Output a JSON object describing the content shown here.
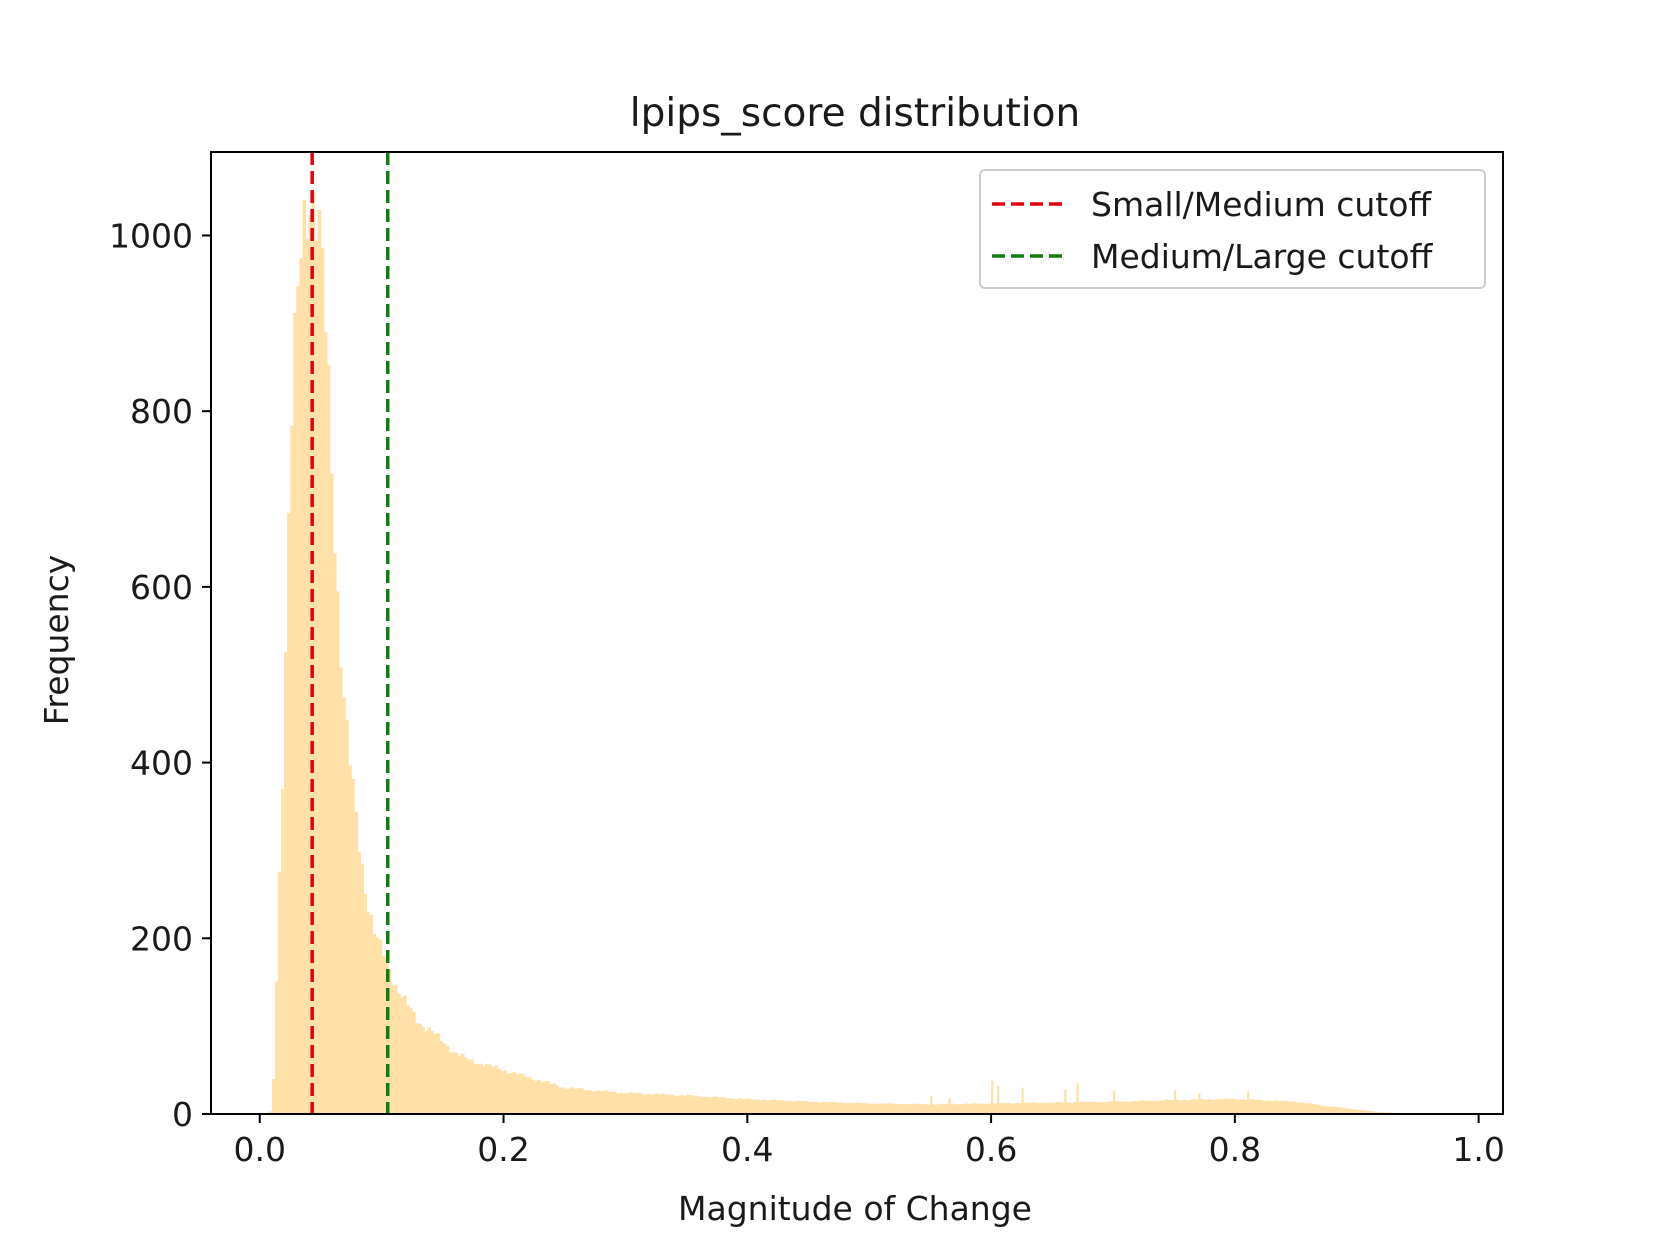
{
  "chart_data": {
    "type": "histogram",
    "title": "lpips_score distribution",
    "xlabel": "Magnitude of Change",
    "ylabel": "Frequency",
    "xlim": [
      -0.04,
      1.02
    ],
    "ylim": [
      0,
      1095
    ],
    "xticks": [
      0.0,
      0.2,
      0.4,
      0.6,
      0.8,
      1.0
    ],
    "xtick_labels": [
      "0.0",
      "0.2",
      "0.4",
      "0.6",
      "0.8",
      "1.0"
    ],
    "yticks": [
      0,
      200,
      400,
      600,
      800,
      1000
    ],
    "ytick_labels": [
      "0",
      "200",
      "400",
      "600",
      "800",
      "1000"
    ],
    "grid": false,
    "legend_position": "top-right",
    "bar_color": "#ffe0a8",
    "histogram_profile": {
      "x": [
        0.0,
        0.008,
        0.01,
        0.012,
        0.015,
        0.02,
        0.025,
        0.03,
        0.035,
        0.04,
        0.045,
        0.05,
        0.055,
        0.06,
        0.065,
        0.07,
        0.075,
        0.08,
        0.085,
        0.09,
        0.095,
        0.1,
        0.105,
        0.11,
        0.12,
        0.13,
        0.14,
        0.15,
        0.16,
        0.17,
        0.18,
        0.2,
        0.22,
        0.25,
        0.28,
        0.3,
        0.35,
        0.4,
        0.45,
        0.5,
        0.55,
        0.6,
        0.65,
        0.7,
        0.75,
        0.8,
        0.85,
        0.87,
        0.9,
        0.92,
        0.95
      ],
      "y": [
        0,
        0,
        8,
        60,
        220,
        450,
        750,
        900,
        1010,
        1060,
        1040,
        980,
        860,
        700,
        560,
        450,
        380,
        320,
        270,
        230,
        200,
        185,
        170,
        150,
        125,
        105,
        95,
        82,
        70,
        62,
        58,
        50,
        42,
        30,
        26,
        24,
        21,
        17,
        14,
        12,
        11,
        12,
        13,
        14,
        16,
        17,
        14,
        10,
        5,
        2,
        0
      ]
    },
    "spikes": [
      {
        "x": 0.55,
        "y": 20
      },
      {
        "x": 0.565,
        "y": 18
      },
      {
        "x": 0.6,
        "y": 38
      },
      {
        "x": 0.605,
        "y": 32
      },
      {
        "x": 0.625,
        "y": 30
      },
      {
        "x": 0.66,
        "y": 28
      },
      {
        "x": 0.67,
        "y": 35
      },
      {
        "x": 0.7,
        "y": 26
      },
      {
        "x": 0.75,
        "y": 27
      },
      {
        "x": 0.77,
        "y": 24
      },
      {
        "x": 0.81,
        "y": 26
      }
    ],
    "cutoffs": [
      {
        "label": "Small/Medium cutoff",
        "x": 0.043,
        "color": "#e3000f"
      },
      {
        "label": "Medium/Large cutoff",
        "x": 0.105,
        "color": "#107c10"
      }
    ]
  }
}
